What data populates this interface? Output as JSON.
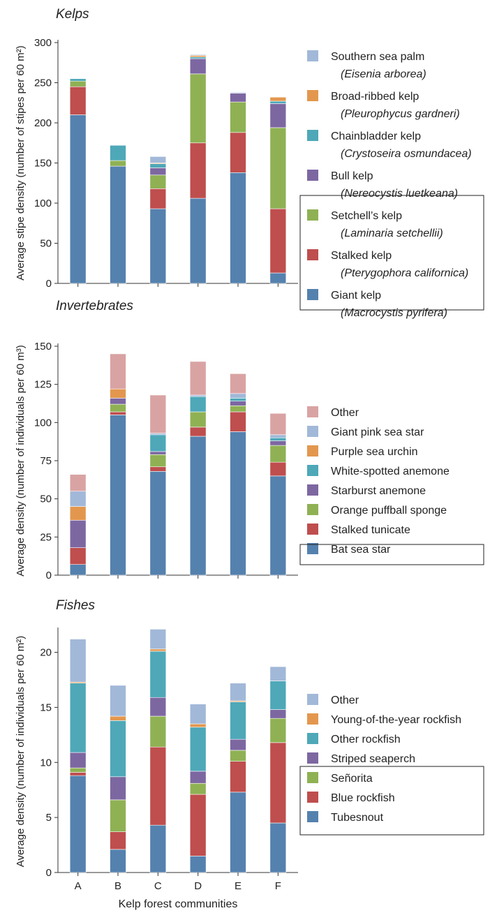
{
  "colors": {
    "steel_blue": "#5581ae",
    "red": "#bf4e4e",
    "green": "#8fb154",
    "purple": "#7d67a1",
    "teal": "#4ea8b8",
    "orange": "#e3974e",
    "light_blue": "#a2b8d8",
    "pink": "#d9a3a3"
  },
  "chart_data": [
    {
      "type": "bar",
      "stacked": true,
      "title": "Kelps",
      "ylabel": "Average stipe density (number of stipes per 60 m²)",
      "xlabel": "",
      "ylim": [
        0,
        300
      ],
      "yticks": [
        0,
        50,
        100,
        150,
        200,
        250,
        300
      ],
      "categories": [
        "A",
        "B",
        "C",
        "D",
        "E",
        "F"
      ],
      "grid": false,
      "legend_position": "right",
      "boxed_series": [
        "Setchell’s kelp",
        "Stalked kelp",
        "Giant kelp"
      ],
      "series": [
        {
          "name": "Giant kelp",
          "sci": "(Macrocystis pyrifera)",
          "color": "#5581ae",
          "values": [
            210,
            146,
            93,
            106,
            138,
            13
          ]
        },
        {
          "name": "Stalked kelp",
          "sci": "(Pterygophora californica)",
          "color": "#bf4e4e",
          "values": [
            35,
            0,
            25,
            69,
            50,
            80
          ]
        },
        {
          "name": "Setchell’s kelp",
          "sci": "(Laminaria setchellii)",
          "color": "#8fb154",
          "values": [
            7,
            7,
            17,
            86,
            38,
            101
          ]
        },
        {
          "name": "Bull kelp",
          "sci": "(Nereocystis luetkeana)",
          "color": "#7d67a1",
          "values": [
            0,
            0,
            9,
            19,
            11,
            30
          ]
        },
        {
          "name": "Chainbladder kelp",
          "sci": "(Crystoseira osmundacea)",
          "color": "#4ea8b8",
          "values": [
            3,
            19,
            5,
            2,
            0,
            3
          ]
        },
        {
          "name": "Broad-ribbed kelp",
          "sci": "(Pleurophycus gardneri)",
          "color": "#e3974e",
          "values": [
            0,
            0,
            1,
            2,
            0,
            5
          ]
        },
        {
          "name": "Southern sea palm",
          "sci": "(Eisenia arborea)",
          "color": "#a2b8d8",
          "values": [
            0,
            0,
            8,
            1,
            1,
            0
          ]
        }
      ]
    },
    {
      "type": "bar",
      "stacked": true,
      "title": "Invertebrates",
      "ylabel": "Average density (number of individuals per 60 m³)",
      "xlabel": "",
      "ylim": [
        0,
        150
      ],
      "yticks": [
        0,
        25,
        50,
        75,
        100,
        125,
        150
      ],
      "categories": [
        "A",
        "B",
        "C",
        "D",
        "E",
        "F"
      ],
      "grid": false,
      "legend_position": "right",
      "boxed_series": [
        "Bat sea star"
      ],
      "series": [
        {
          "name": "Bat sea star",
          "color": "#5581ae",
          "values": [
            7,
            105,
            68,
            91,
            94,
            65
          ]
        },
        {
          "name": "Stalked tunicate",
          "color": "#bf4e4e",
          "values": [
            11,
            2,
            3,
            6,
            13,
            9
          ]
        },
        {
          "name": "Orange puffball sponge",
          "color": "#8fb154",
          "values": [
            0,
            5,
            8,
            10,
            4,
            11
          ]
        },
        {
          "name": "Starburst anemone",
          "color": "#7d67a1",
          "values": [
            18,
            4,
            2,
            0,
            3,
            3
          ]
        },
        {
          "name": "White-spotted anemone",
          "color": "#4ea8b8",
          "values": [
            0,
            0,
            11,
            10,
            2,
            2
          ]
        },
        {
          "name": "Purple sea urchin",
          "color": "#e3974e",
          "values": [
            9,
            6,
            0,
            0,
            0,
            0
          ]
        },
        {
          "name": "Giant pink sea star",
          "color": "#a2b8d8",
          "values": [
            10,
            0,
            1,
            1,
            3,
            2
          ]
        },
        {
          "name": "Other",
          "color": "#d9a3a3",
          "values": [
            11,
            23,
            25,
            22,
            13,
            14
          ]
        }
      ]
    },
    {
      "type": "bar",
      "stacked": true,
      "title": "Fishes",
      "ylabel": "Average density (number of individuals per 60 m²)",
      "xlabel": "Kelp forest communities",
      "ylim": [
        0,
        22
      ],
      "yticks": [
        0,
        5,
        10,
        15,
        20
      ],
      "categories": [
        "A",
        "B",
        "C",
        "D",
        "E",
        "F"
      ],
      "grid": false,
      "legend_position": "right",
      "boxed_series": [
        "Striped seaperch",
        "Señorita",
        "Blue rockfish",
        "Tubesnout"
      ],
      "series": [
        {
          "name": "Tubesnout",
          "color": "#5581ae",
          "values": [
            8.8,
            2.1,
            4.3,
            1.5,
            7.3,
            4.5
          ]
        },
        {
          "name": "Blue rockfish",
          "color": "#bf4e4e",
          "values": [
            0.3,
            1.6,
            7.1,
            5.6,
            2.8,
            7.3
          ]
        },
        {
          "name": "Señorita",
          "color": "#8fb154",
          "values": [
            0.4,
            2.9,
            2.8,
            1.0,
            1.0,
            2.2
          ]
        },
        {
          "name": "Striped seaperch",
          "color": "#7d67a1",
          "values": [
            1.4,
            2.1,
            1.7,
            1.1,
            1.0,
            0.8
          ]
        },
        {
          "name": "Other rockfish",
          "color": "#4ea8b8",
          "values": [
            6.3,
            5.1,
            4.2,
            4.0,
            3.4,
            2.6
          ]
        },
        {
          "name": "Young-of-the-year rockfish",
          "color": "#e3974e",
          "values": [
            0.1,
            0.4,
            0.2,
            0.3,
            0.1,
            0.0
          ]
        },
        {
          "name": "Other",
          "color": "#a2b8d8",
          "values": [
            3.9,
            2.8,
            1.8,
            1.8,
            1.6,
            1.3
          ]
        }
      ]
    }
  ]
}
